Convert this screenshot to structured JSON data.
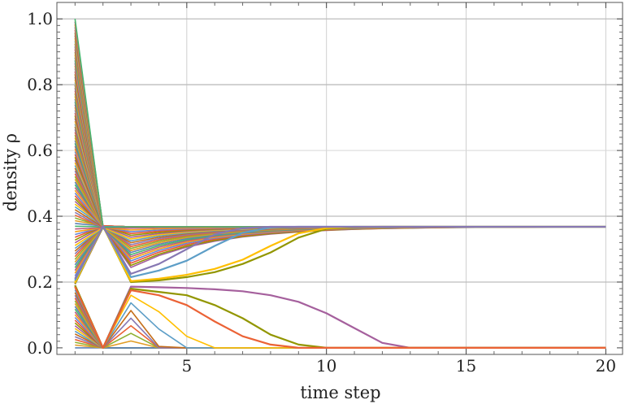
{
  "chart_data": {
    "type": "line",
    "xlabel": "time step",
    "ylabel": "density ρ",
    "xlim": [
      0.35,
      20.6
    ],
    "ylim": [
      -0.02,
      1.05
    ],
    "xticks": [
      5,
      10,
      15,
      20
    ],
    "yticks": [
      0.0,
      0.2,
      0.4,
      0.6,
      0.8,
      1.0
    ],
    "ytick_labels": [
      "0.0",
      "0.2",
      "0.4",
      "0.6",
      "0.8",
      "1.0"
    ],
    "xtick_labels": [
      "5",
      "10",
      "15",
      "20"
    ],
    "grid": true,
    "horizontal_gridlines": [
      0.2,
      0.4,
      0.8,
      1.0
    ],
    "fixed_points": {
      "upper": 0.368,
      "lower": 0.0
    },
    "separatrix": 0.19,
    "series_count": 120,
    "x_range": [
      1,
      20
    ],
    "initial_density_range": [
      0.0,
      1.0
    ],
    "palette": [
      "#5e81b5",
      "#e19c24",
      "#8fb032",
      "#eb6235",
      "#8778b3",
      "#c56e1a",
      "#5d9ec7",
      "#ffbf00",
      "#a5609d",
      "#929600",
      "#e95536",
      "#6685d9",
      "#f89f13",
      "#bc5b80",
      "#47b66d"
    ],
    "highlighted_series": [
      {
        "color": "#a5609d",
        "values": [
          0.19,
          0.0,
          0.186,
          0.184,
          0.182,
          0.178,
          0.172,
          0.16,
          0.14,
          0.105,
          0.06,
          0.015,
          0.0,
          0.0,
          0.0,
          0.0,
          0.0,
          0.0,
          0.0,
          0.0
        ]
      },
      {
        "color": "#929600",
        "values": [
          0.19,
          0.0,
          0.18,
          0.17,
          0.16,
          0.13,
          0.09,
          0.04,
          0.01,
          0.0,
          0.0,
          0.0,
          0.0,
          0.0,
          0.0,
          0.0,
          0.0,
          0.0,
          0.0,
          0.0
        ]
      },
      {
        "color": "#eb6235",
        "values": [
          0.185,
          0.0,
          0.175,
          0.16,
          0.13,
          0.08,
          0.035,
          0.01,
          0.0,
          0.0,
          0.0,
          0.0,
          0.0,
          0.0,
          0.0,
          0.0,
          0.0,
          0.0,
          0.0,
          0.0
        ]
      },
      {
        "color": "#929600",
        "values": [
          0.195,
          0.37,
          0.2,
          0.205,
          0.215,
          0.23,
          0.255,
          0.29,
          0.335,
          0.362,
          0.367,
          0.368,
          0.368,
          0.368,
          0.368,
          0.368,
          0.368,
          0.368,
          0.368,
          0.368
        ]
      },
      {
        "color": "#ffbf00",
        "values": [
          0.198,
          0.37,
          0.203,
          0.21,
          0.222,
          0.24,
          0.268,
          0.31,
          0.348,
          0.364,
          0.368,
          0.368,
          0.368,
          0.368,
          0.368,
          0.368,
          0.368,
          0.368,
          0.368,
          0.368
        ]
      },
      {
        "color": "#5d9ec7",
        "values": [
          0.205,
          0.37,
          0.215,
          0.235,
          0.265,
          0.31,
          0.35,
          0.366,
          0.368,
          0.368,
          0.368,
          0.368,
          0.368,
          0.368,
          0.368,
          0.368,
          0.368,
          0.368,
          0.368,
          0.368
        ]
      },
      {
        "color": "#8778b3",
        "values": [
          0.21,
          0.37,
          0.225,
          0.255,
          0.3,
          0.345,
          0.364,
          0.368,
          0.368,
          0.368,
          0.368,
          0.368,
          0.368,
          0.368,
          0.368,
          0.368,
          0.368,
          0.368,
          0.368,
          0.368
        ]
      }
    ]
  }
}
